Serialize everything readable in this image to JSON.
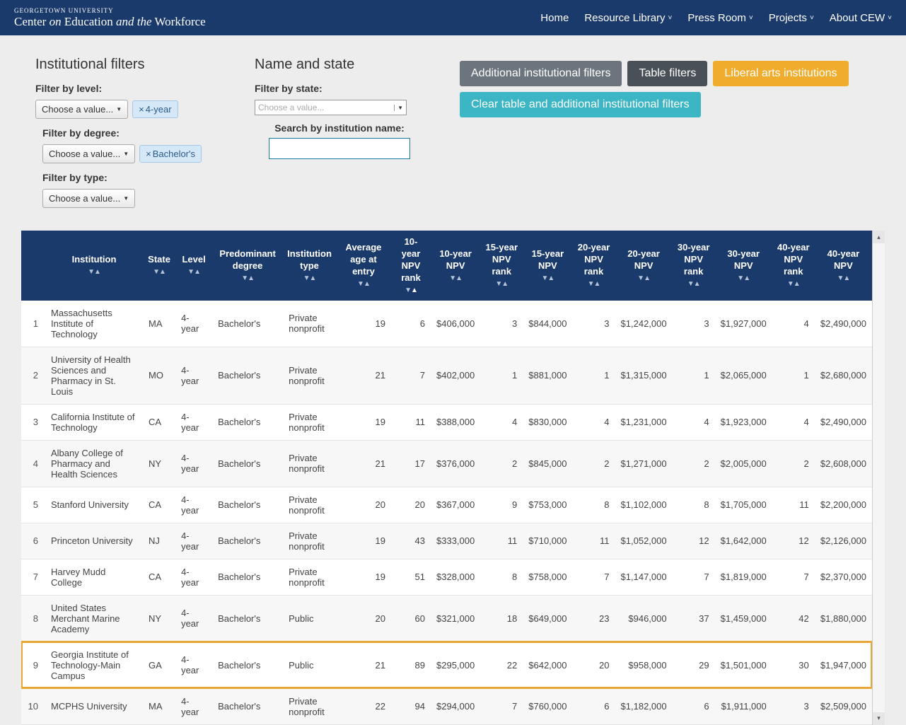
{
  "brand": {
    "top": "GEORGETOWN UNIVERSITY",
    "main_pre": "Center ",
    "main_on": "on",
    "main_mid": " Education ",
    "main_and": "and the",
    "main_end": " Workforce"
  },
  "nav": {
    "home": "Home",
    "resource": "Resource Library",
    "press": "Press Room",
    "projects": "Projects",
    "about": "About CEW",
    "chev": "˅"
  },
  "filters": {
    "inst_h": "Institutional filters",
    "level_lbl": "Filter by level:",
    "choose": "Choose a value...",
    "caret": "▼",
    "tag_level": "4-year",
    "degree_lbl": "Filter by degree:",
    "tag_degree": "Bachelor's",
    "type_lbl": "Filter by type:",
    "name_h": "Name and state",
    "state_lbl": "Filter by state:",
    "state_ph": "Choose a value...",
    "search_lbl": "Search by institution name:",
    "x": "×"
  },
  "buttons": {
    "addl": "Additional institutional filters",
    "table": "Table filters",
    "liberal": "Liberal arts institutions",
    "clear": "Clear table and additional institutional filters"
  },
  "columns": [
    "",
    "Institution",
    "State",
    "Level",
    "Predominant degree",
    "Institution type",
    "Average age at entry",
    "10-year NPV rank",
    "10-year NPV",
    "15-year NPV rank",
    "15-year NPV",
    "20-year NPV rank",
    "20-year NPV",
    "30-year NPV rank",
    "30-year NPV",
    "40-year NPV rank",
    "40-year NPV"
  ],
  "sort_down": "▼",
  "sort_up": "▲",
  "rows": [
    {
      "i": "1",
      "inst": "Massachusetts Institute of Technology",
      "st": "MA",
      "lv": "4-year",
      "deg": "Bachelor's",
      "ty": "Private nonprofit",
      "age": "19",
      "r10": "6",
      "n10": "$406,000",
      "r15": "3",
      "n15": "$844,000",
      "r20": "3",
      "n20": "$1,242,000",
      "r30": "3",
      "n30": "$1,927,000",
      "r40": "4",
      "n40": "$2,490,000",
      "hl": false
    },
    {
      "i": "2",
      "inst": "University of Health Sciences and Pharmacy in St. Louis",
      "st": "MO",
      "lv": "4-year",
      "deg": "Bachelor's",
      "ty": "Private nonprofit",
      "age": "21",
      "r10": "7",
      "n10": "$402,000",
      "r15": "1",
      "n15": "$881,000",
      "r20": "1",
      "n20": "$1,315,000",
      "r30": "1",
      "n30": "$2,065,000",
      "r40": "1",
      "n40": "$2,680,000",
      "hl": false
    },
    {
      "i": "3",
      "inst": "California Institute of Technology",
      "st": "CA",
      "lv": "4-year",
      "deg": "Bachelor's",
      "ty": "Private nonprofit",
      "age": "19",
      "r10": "11",
      "n10": "$388,000",
      "r15": "4",
      "n15": "$830,000",
      "r20": "4",
      "n20": "$1,231,000",
      "r30": "4",
      "n30": "$1,923,000",
      "r40": "4",
      "n40": "$2,490,000",
      "hl": false
    },
    {
      "i": "4",
      "inst": "Albany College of Pharmacy and Health Sciences",
      "st": "NY",
      "lv": "4-year",
      "deg": "Bachelor's",
      "ty": "Private nonprofit",
      "age": "21",
      "r10": "17",
      "n10": "$376,000",
      "r15": "2",
      "n15": "$845,000",
      "r20": "2",
      "n20": "$1,271,000",
      "r30": "2",
      "n30": "$2,005,000",
      "r40": "2",
      "n40": "$2,608,000",
      "hl": false
    },
    {
      "i": "5",
      "inst": "Stanford University",
      "st": "CA",
      "lv": "4-year",
      "deg": "Bachelor's",
      "ty": "Private nonprofit",
      "age": "20",
      "r10": "20",
      "n10": "$367,000",
      "r15": "9",
      "n15": "$753,000",
      "r20": "8",
      "n20": "$1,102,000",
      "r30": "8",
      "n30": "$1,705,000",
      "r40": "11",
      "n40": "$2,200,000",
      "hl": false
    },
    {
      "i": "6",
      "inst": "Princeton University",
      "st": "NJ",
      "lv": "4-year",
      "deg": "Bachelor's",
      "ty": "Private nonprofit",
      "age": "19",
      "r10": "43",
      "n10": "$333,000",
      "r15": "11",
      "n15": "$710,000",
      "r20": "11",
      "n20": "$1,052,000",
      "r30": "12",
      "n30": "$1,642,000",
      "r40": "12",
      "n40": "$2,126,000",
      "hl": false
    },
    {
      "i": "7",
      "inst": "Harvey Mudd College",
      "st": "CA",
      "lv": "4-year",
      "deg": "Bachelor's",
      "ty": "Private nonprofit",
      "age": "19",
      "r10": "51",
      "n10": "$328,000",
      "r15": "8",
      "n15": "$758,000",
      "r20": "7",
      "n20": "$1,147,000",
      "r30": "7",
      "n30": "$1,819,000",
      "r40": "7",
      "n40": "$2,370,000",
      "hl": false
    },
    {
      "i": "8",
      "inst": "United States Merchant Marine Academy",
      "st": "NY",
      "lv": "4-year",
      "deg": "Bachelor's",
      "ty": "Public",
      "age": "20",
      "r10": "60",
      "n10": "$321,000",
      "r15": "18",
      "n15": "$649,000",
      "r20": "23",
      "n20": "$946,000",
      "r30": "37",
      "n30": "$1,459,000",
      "r40": "42",
      "n40": "$1,880,000",
      "hl": false
    },
    {
      "i": "9",
      "inst": "Georgia Institute of Technology-Main Campus",
      "st": "GA",
      "lv": "4-year",
      "deg": "Bachelor's",
      "ty": "Public",
      "age": "21",
      "r10": "89",
      "n10": "$295,000",
      "r15": "22",
      "n15": "$642,000",
      "r20": "20",
      "n20": "$958,000",
      "r30": "29",
      "n30": "$1,501,000",
      "r40": "30",
      "n40": "$1,947,000",
      "hl": true
    },
    {
      "i": "10",
      "inst": "MCPHS University",
      "st": "MA",
      "lv": "4-year",
      "deg": "Bachelor's",
      "ty": "Private nonprofit",
      "age": "22",
      "r10": "94",
      "n10": "$294,000",
      "r15": "7",
      "n15": "$760,000",
      "r20": "6",
      "n20": "$1,182,000",
      "r30": "6",
      "n30": "$1,911,000",
      "r40": "3",
      "n40": "$2,509,000",
      "hl": false
    }
  ]
}
